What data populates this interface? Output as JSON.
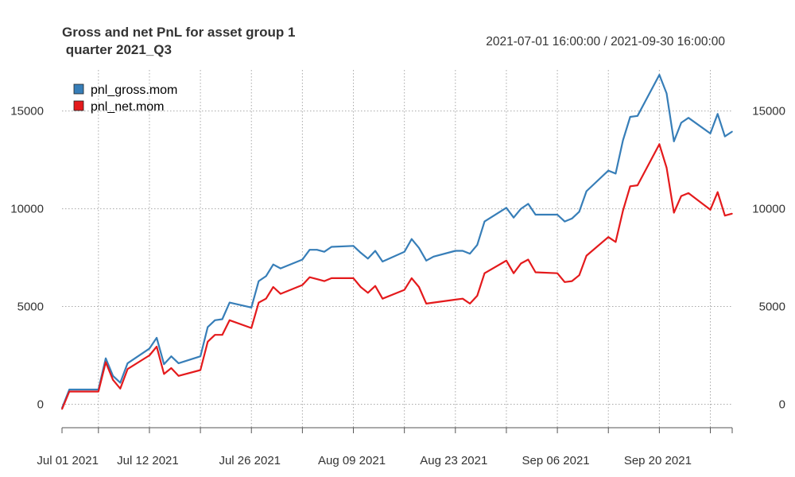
{
  "chart_data": {
    "type": "line",
    "title": "Gross and net PnL for asset group 1\n quarter 2021_Q3",
    "subtitle": "2021-07-01 16:00:00 / 2021-09-30 16:00:00",
    "xlabel": "",
    "ylabel": "",
    "ylim": [
      -1200,
      17100
    ],
    "xlim": [
      "2021-06-30",
      "2021-09-30"
    ],
    "grid": true,
    "legend_position": "top-left",
    "y_ticks": [
      0,
      5000,
      10000,
      15000
    ],
    "x_ticks": [
      {
        "date": "2021-07-01",
        "label": "Jul 01 2021"
      },
      {
        "date": "2021-07-12",
        "label": "Jul 12 2021"
      },
      {
        "date": "2021-07-26",
        "label": "Jul 26 2021"
      },
      {
        "date": "2021-08-09",
        "label": "Aug 09 2021"
      },
      {
        "date": "2021-08-23",
        "label": "Aug 23 2021"
      },
      {
        "date": "2021-09-06",
        "label": "Sep 06 2021"
      },
      {
        "date": "2021-09-20",
        "label": "Sep 20 2021"
      }
    ],
    "x": [
      "2021-06-30",
      "2021-07-01",
      "2021-07-02",
      "2021-07-05",
      "2021-07-06",
      "2021-07-07",
      "2021-07-08",
      "2021-07-09",
      "2021-07-12",
      "2021-07-13",
      "2021-07-14",
      "2021-07-15",
      "2021-07-16",
      "2021-07-19",
      "2021-07-20",
      "2021-07-21",
      "2021-07-22",
      "2021-07-23",
      "2021-07-26",
      "2021-07-27",
      "2021-07-28",
      "2021-07-29",
      "2021-07-30",
      "2021-08-02",
      "2021-08-03",
      "2021-08-04",
      "2021-08-05",
      "2021-08-06",
      "2021-08-09",
      "2021-08-10",
      "2021-08-11",
      "2021-08-12",
      "2021-08-13",
      "2021-08-16",
      "2021-08-17",
      "2021-08-18",
      "2021-08-19",
      "2021-08-20",
      "2021-08-23",
      "2021-08-24",
      "2021-08-25",
      "2021-08-26",
      "2021-08-27",
      "2021-08-30",
      "2021-08-31",
      "2021-09-01",
      "2021-09-02",
      "2021-09-03",
      "2021-09-06",
      "2021-09-07",
      "2021-09-08",
      "2021-09-09",
      "2021-09-10",
      "2021-09-13",
      "2021-09-14",
      "2021-09-15",
      "2021-09-16",
      "2021-09-17",
      "2021-09-20",
      "2021-09-21",
      "2021-09-22",
      "2021-09-23",
      "2021-09-24",
      "2021-09-27",
      "2021-09-28",
      "2021-09-29",
      "2021-09-30"
    ],
    "series": [
      {
        "name": "pnl_gross.mom",
        "color": "#377EB8",
        "values": [
          -200,
          750,
          750,
          750,
          2350,
          1450,
          1100,
          2100,
          2850,
          3400,
          2050,
          2450,
          2100,
          2450,
          3950,
          4300,
          4350,
          5200,
          4950,
          6300,
          6550,
          7150,
          6950,
          7400,
          7900,
          7900,
          7800,
          8050,
          8100,
          7750,
          7450,
          7850,
          7300,
          7800,
          8450,
          8000,
          7350,
          7550,
          7850,
          7850,
          7700,
          8150,
          9350,
          10050,
          9550,
          10000,
          10250,
          9700,
          9700,
          9350,
          9500,
          9850,
          10900,
          11950,
          11800,
          13500,
          14700,
          14750,
          16850,
          15900,
          13450,
          14400,
          14650,
          13850,
          14850,
          13700,
          13950
        ]
      },
      {
        "name": "pnl_net.mom",
        "color": "#E41A1C",
        "values": [
          -250,
          650,
          650,
          650,
          2150,
          1250,
          800,
          1800,
          2500,
          2950,
          1550,
          1850,
          1450,
          1750,
          3200,
          3550,
          3550,
          4300,
          3900,
          5200,
          5400,
          6000,
          5650,
          6100,
          6500,
          6400,
          6300,
          6450,
          6450,
          6000,
          5700,
          6050,
          5400,
          5850,
          6450,
          6000,
          5150,
          5200,
          5350,
          5400,
          5150,
          5550,
          6700,
          7350,
          6700,
          7200,
          7400,
          6750,
          6700,
          6250,
          6300,
          6600,
          7600,
          8550,
          8300,
          9900,
          11150,
          11200,
          13300,
          12100,
          9800,
          10650,
          10800,
          9950,
          10850,
          9650,
          9750
        ]
      }
    ]
  }
}
